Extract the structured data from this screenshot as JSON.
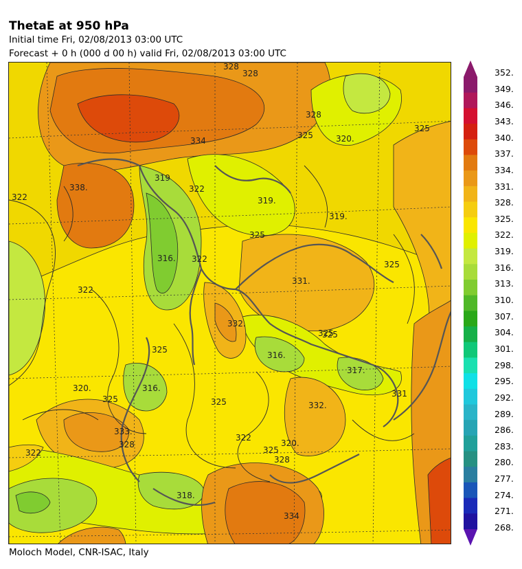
{
  "header": {
    "title": "ThetaE at 950 hPa",
    "initial_time": "Initial time  Fri, 02/08/2013  03:00 UTC",
    "forecast": "Forecast  +    0 h  (000 d 00 h)  valid Fri, 02/08/2013 03:00 UTC"
  },
  "footer": "Moloch Model, CNR-ISAC, Italy",
  "map": {
    "contour_labels": [
      "328",
      "328",
      "328",
      "334",
      "338.",
      "322",
      "325",
      "319",
      "322",
      "319.",
      "319.",
      "320.",
      "325",
      "316.",
      "322",
      "325",
      "331.",
      "332.",
      "322",
      "325",
      "316.",
      "317.",
      "325",
      "320.",
      "325",
      "316.",
      "325",
      "332.",
      "333.",
      "328",
      "322",
      "320.",
      "325",
      "328",
      "318.",
      "334",
      "331",
      "325",
      "325",
      "322"
    ]
  },
  "colorbar": {
    "labels": [
      "352.",
      "349.",
      "346.",
      "343.",
      "340.",
      "337.",
      "334.",
      "331.",
      "328.",
      "325.",
      "322.",
      "319.",
      "316.",
      "313.",
      "310.",
      "307.",
      "304.",
      "301.",
      "298.",
      "295.",
      "292.",
      "289.",
      "286.",
      "283.",
      "280.",
      "277.",
      "274.",
      "271.",
      "268."
    ],
    "colors": [
      "#8b1a6b",
      "#b0175a",
      "#d41030",
      "#d42010",
      "#dd4a0a",
      "#e27a10",
      "#ea9818",
      "#f1b418",
      "#f5cd10",
      "#fae600",
      "#e0f000",
      "#c4e840",
      "#a8dc3a",
      "#80cc30",
      "#50b828",
      "#2aa818",
      "#16b048",
      "#10c878",
      "#1ae0b0",
      "#10e0e6",
      "#20c8dc",
      "#2ab4c8",
      "#26a4b4",
      "#20a09a",
      "#269082",
      "#2a7ea0",
      "#1a56b8",
      "#1a2ab8",
      "#2012a0"
    ],
    "top_arrow_color": "#8b1a6b",
    "bottom_arrow_color": "#5a14b0"
  }
}
